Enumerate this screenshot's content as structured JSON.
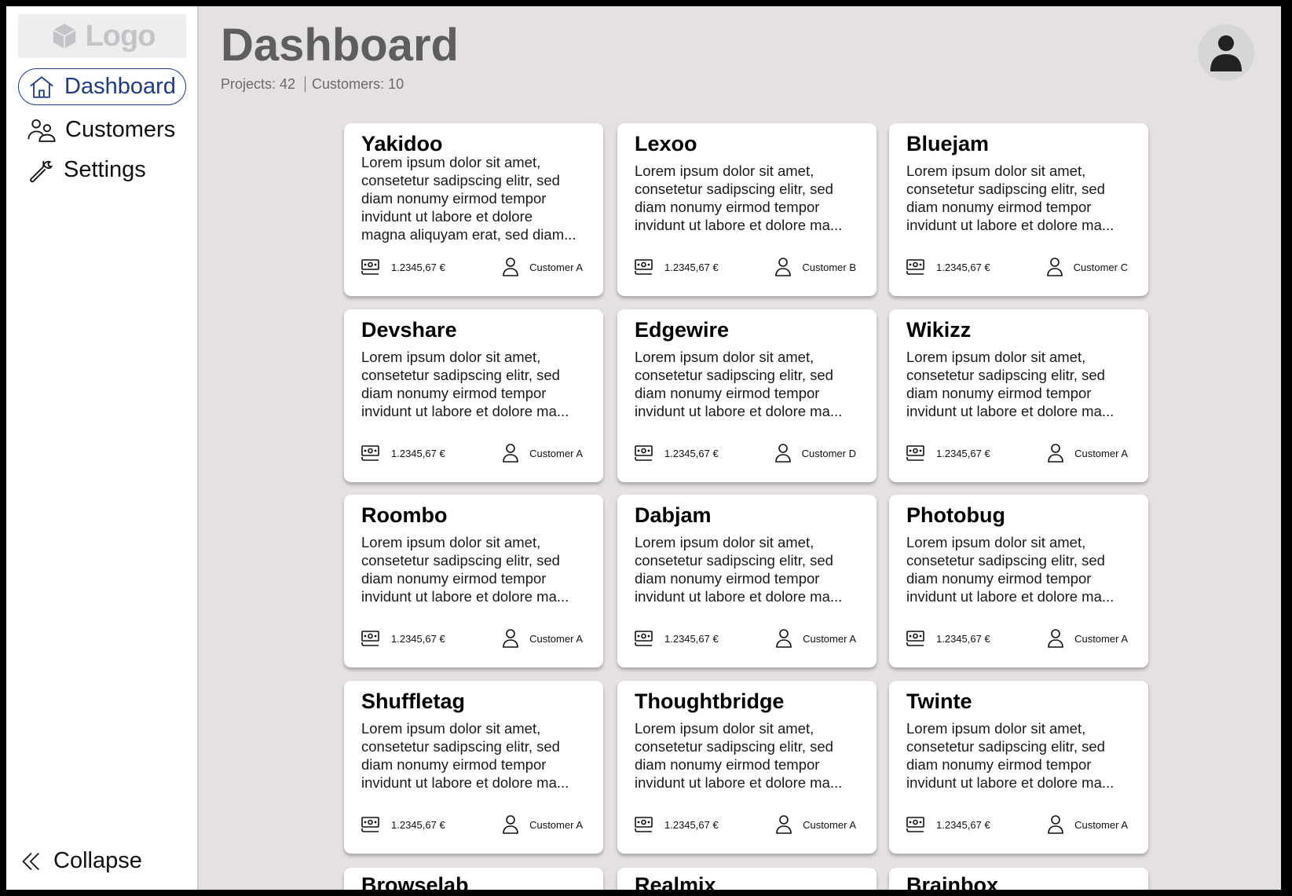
{
  "sidebar": {
    "logo": "Logo",
    "items": [
      {
        "label": "Dashboard",
        "icon": "home-icon",
        "active": true
      },
      {
        "label": "Customers",
        "icon": "users-icon"
      },
      {
        "label": "Settings",
        "icon": "wrench-icon"
      }
    ],
    "collapse": "Collapse"
  },
  "header": {
    "title": "Dashboard",
    "projects": "Projects: 42",
    "customers": "Customers: 10"
  },
  "accent": "#1f3a8a",
  "cards": [
    {
      "title": "Yakidoo",
      "body": "Lorem ipsum dolor sit amet,\nconsetetur sadipscing elitr, sed\ndiam nonumy eirmod tempor\ninvidunt ut labore et dolore\nmagna aliquyam erat, sed diam...",
      "amount": "1.2345,67 €",
      "customer": "Customer A"
    },
    {
      "title": "Lexoo",
      "body": "Lorem ipsum dolor sit amet,\nconsetetur sadipscing elitr, sed\ndiam nonumy eirmod tempor\ninvidunt ut labore et dolore ma...",
      "amount": "1.2345,67 €",
      "customer": "Customer B"
    },
    {
      "title": "Bluejam",
      "body": "Lorem ipsum dolor sit amet,\nconsetetur sadipscing elitr, sed\ndiam nonumy eirmod tempor\ninvidunt ut labore et dolore ma...",
      "amount": "1.2345,67 €",
      "customer": "Customer C"
    },
    {
      "title": "Devshare",
      "body": "Lorem ipsum dolor sit amet,\nconsetetur sadipscing elitr, sed\ndiam nonumy eirmod tempor\ninvidunt ut labore et dolore ma...",
      "amount": "1.2345,67 €",
      "customer": "Customer A"
    },
    {
      "title": "Edgewire",
      "body": "Lorem ipsum dolor sit amet,\nconsetetur sadipscing elitr, sed\ndiam nonumy eirmod tempor\ninvidunt ut labore et dolore ma...",
      "amount": "1.2345,67 €",
      "customer": "Customer D"
    },
    {
      "title": "Wikizz",
      "body": "Lorem ipsum dolor sit amet,\nconsetetur sadipscing elitr, sed\ndiam nonumy eirmod tempor\ninvidunt ut labore et dolore ma...",
      "amount": "1.2345,67 €",
      "customer": "Customer A"
    },
    {
      "title": "Roombo",
      "body": "Lorem ipsum dolor sit amet,\nconsetetur sadipscing elitr, sed\ndiam nonumy eirmod tempor\ninvidunt ut labore et dolore ma...",
      "amount": "1.2345,67 €",
      "customer": "Customer A"
    },
    {
      "title": "Dabjam",
      "body": "Lorem ipsum dolor sit amet,\nconsetetur sadipscing elitr, sed\ndiam nonumy eirmod tempor\ninvidunt ut labore et dolore ma...",
      "amount": "1.2345,67 €",
      "customer": "Customer A"
    },
    {
      "title": "Photobug",
      "body": "Lorem ipsum dolor sit amet,\nconsetetur sadipscing elitr, sed\ndiam nonumy eirmod tempor\ninvidunt ut labore et dolore ma...",
      "amount": "1.2345,67 €",
      "customer": "Customer A"
    },
    {
      "title": "Shuffletag",
      "body": "Lorem ipsum dolor sit amet,\nconsetetur sadipscing elitr, sed\ndiam nonumy eirmod tempor\ninvidunt ut labore et dolore ma...",
      "amount": "1.2345,67 €",
      "customer": "Customer A"
    },
    {
      "title": "Thoughtbridge",
      "body": "Lorem ipsum dolor sit amet,\nconsetetur sadipscing elitr, sed\ndiam nonumy eirmod tempor\ninvidunt ut labore et dolore ma...",
      "amount": "1.2345,67 €",
      "customer": "Customer A"
    },
    {
      "title": "Twinte",
      "body": "Lorem ipsum dolor sit amet,\nconsetetur sadipscing elitr, sed\ndiam nonumy eirmod tempor\ninvidunt ut labore et dolore ma...",
      "amount": "1.2345,67 €",
      "customer": "Customer A"
    },
    {
      "title": "Browselab"
    },
    {
      "title": "Realmix"
    },
    {
      "title": "Brainbox"
    }
  ]
}
